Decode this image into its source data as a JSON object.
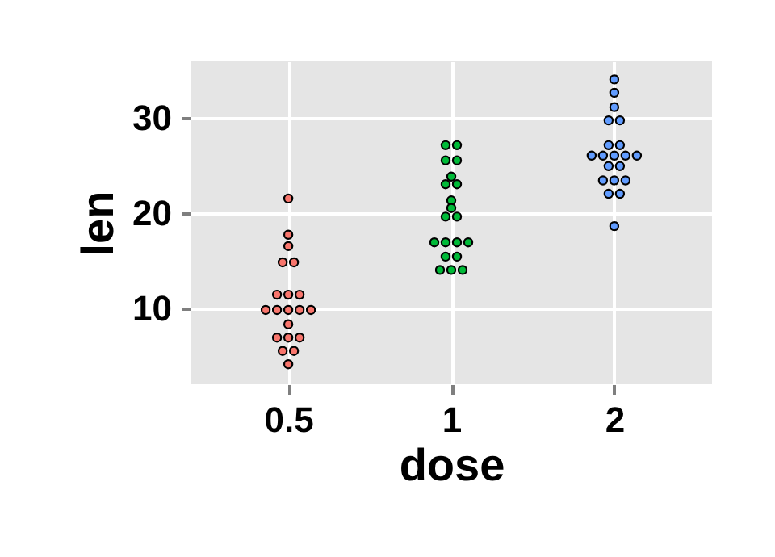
{
  "chart_data": {
    "type": "scatter",
    "xlabel": "dose",
    "ylabel": "len",
    "categories": [
      "0.5",
      "1",
      "2"
    ],
    "ylim": [
      2.0,
      35.9
    ],
    "yticks": [
      10,
      20,
      30
    ],
    "grid": true,
    "legend": false,
    "marker": "circle",
    "series": [
      {
        "color": "#f8766d",
        "x": [
          "0.5",
          "0.5",
          "0.5",
          "0.5",
          "0.5",
          "0.5",
          "0.5",
          "0.5",
          "0.5",
          "0.5",
          "0.5",
          "0.5",
          "0.5",
          "0.5",
          "0.5",
          "0.5",
          "0.5",
          "0.5",
          "0.5",
          "0.5"
        ],
        "values": [
          21.5,
          17.7,
          16.5,
          14.8,
          14.8,
          11.4,
          11.4,
          11.4,
          9.8,
          9.8,
          9.8,
          9.8,
          9.8,
          8.3,
          6.9,
          6.9,
          6.9,
          5.5,
          5.5,
          4.1
        ]
      },
      {
        "color": "#00ba38",
        "x": [
          "1",
          "1",
          "1",
          "1",
          "1",
          "1",
          "1",
          "1",
          "1",
          "1",
          "1",
          "1",
          "1",
          "1",
          "1",
          "1",
          "1",
          "1",
          "1",
          "1"
        ],
        "values": [
          27.1,
          27.1,
          25.5,
          25.5,
          23.8,
          23.0,
          23.0,
          21.3,
          20.5,
          19.6,
          19.6,
          16.9,
          16.9,
          16.9,
          16.9,
          15.4,
          15.4,
          14.0,
          14.0,
          14.0
        ]
      },
      {
        "color": "#619cff",
        "x": [
          "2",
          "2",
          "2",
          "2",
          "2",
          "2",
          "2",
          "2",
          "2",
          "2",
          "2",
          "2",
          "2",
          "2",
          "2",
          "2",
          "2",
          "2",
          "2",
          "2"
        ],
        "values": [
          34.0,
          32.6,
          31.1,
          29.7,
          29.7,
          27.1,
          27.1,
          26.0,
          26.0,
          26.0,
          26.0,
          26.0,
          24.9,
          24.9,
          23.4,
          23.4,
          23.4,
          22.0,
          22.0,
          18.6
        ]
      }
    ]
  }
}
